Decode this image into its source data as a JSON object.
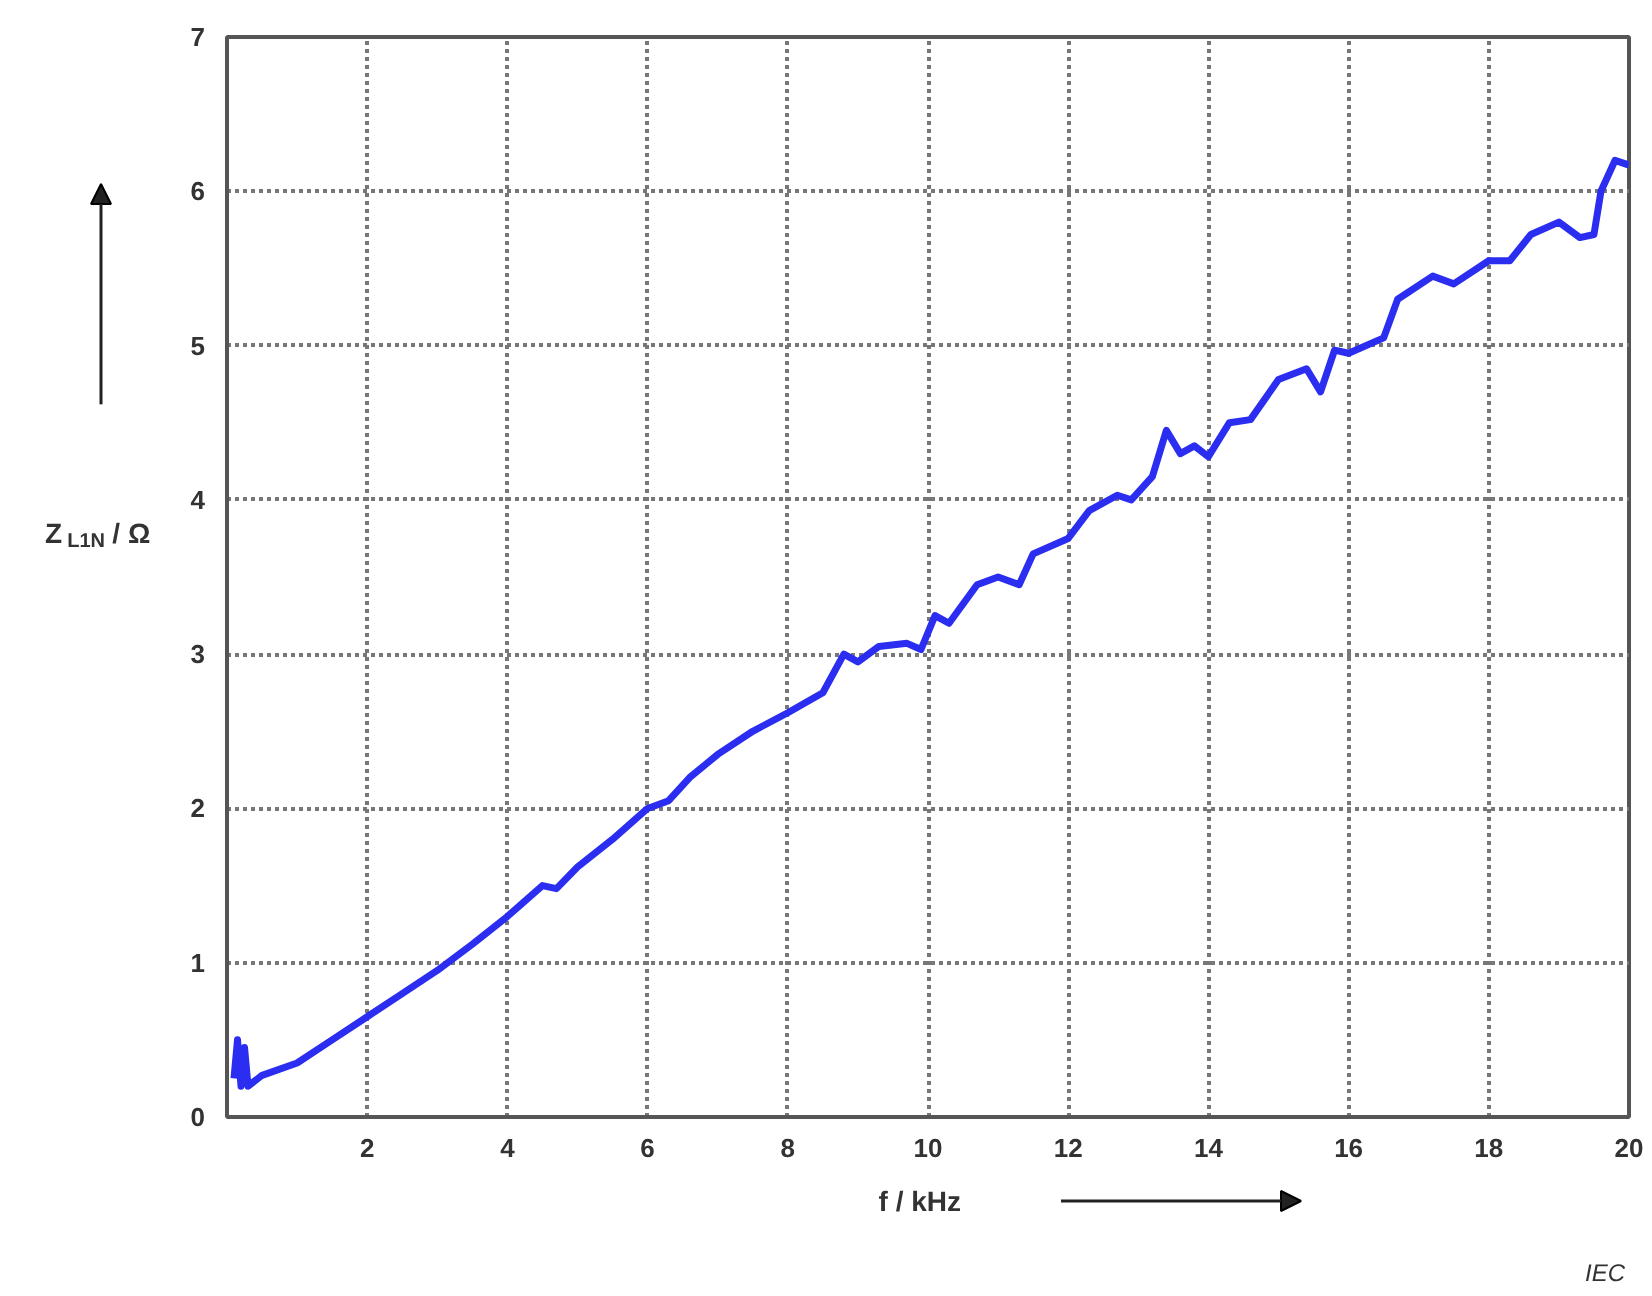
{
  "chart_data": {
    "type": "line",
    "xlabel": "f / kHz",
    "ylabel": "Z$_{L1N}$ / Ω",
    "x": [
      0.1,
      0.15,
      0.2,
      0.25,
      0.3,
      0.5,
      1.0,
      1.5,
      2,
      2.5,
      3,
      3.5,
      4,
      4.2,
      4.5,
      4.7,
      5,
      5.5,
      6,
      6.3,
      6.6,
      7,
      7.5,
      8,
      8.5,
      8.8,
      9,
      9.3,
      9.7,
      9.9,
      10.1,
      10.3,
      10.7,
      11,
      11.3,
      11.5,
      12,
      12.3,
      12.7,
      12.9,
      13.2,
      13.4,
      13.6,
      13.8,
      14.0,
      14.3,
      14.6,
      15,
      15.4,
      15.6,
      15.8,
      16,
      16.5,
      16.7,
      17.2,
      17.5,
      18,
      18.3,
      18.6,
      19,
      19.3,
      19.5,
      19.6,
      19.8,
      20
    ],
    "series": [
      {
        "color": "#2b2ef0",
        "values": [
          0.25,
          0.5,
          0.2,
          0.45,
          0.2,
          0.27,
          0.35,
          0.5,
          0.65,
          0.8,
          0.95,
          1.12,
          1.3,
          1.38,
          1.5,
          1.48,
          1.62,
          1.8,
          2.0,
          2.05,
          2.2,
          2.35,
          2.5,
          2.62,
          2.75,
          3.0,
          2.95,
          3.05,
          3.07,
          3.03,
          3.25,
          3.2,
          3.45,
          3.5,
          3.45,
          3.65,
          3.75,
          3.93,
          4.03,
          4.0,
          4.15,
          4.45,
          4.3,
          4.35,
          4.28,
          4.5,
          4.52,
          4.78,
          4.85,
          4.7,
          4.97,
          4.95,
          5.05,
          5.3,
          5.45,
          5.4,
          5.55,
          5.55,
          5.72,
          5.8,
          5.7,
          5.72,
          6.0,
          6.2,
          6.17
        ]
      }
    ],
    "xlim": [
      0,
      20
    ],
    "xticks": [
      {
        "value": 0,
        "label": null
      },
      2,
      4,
      6,
      8,
      10,
      12,
      14,
      16,
      18,
      20
    ],
    "ylim": [
      0,
      7
    ],
    "yticks": [
      0,
      1,
      2,
      3,
      4,
      5,
      6,
      7
    ],
    "grid": true,
    "marker": "none",
    "line_style": "solid",
    "annotations": [
      "IEC"
    ]
  }
}
